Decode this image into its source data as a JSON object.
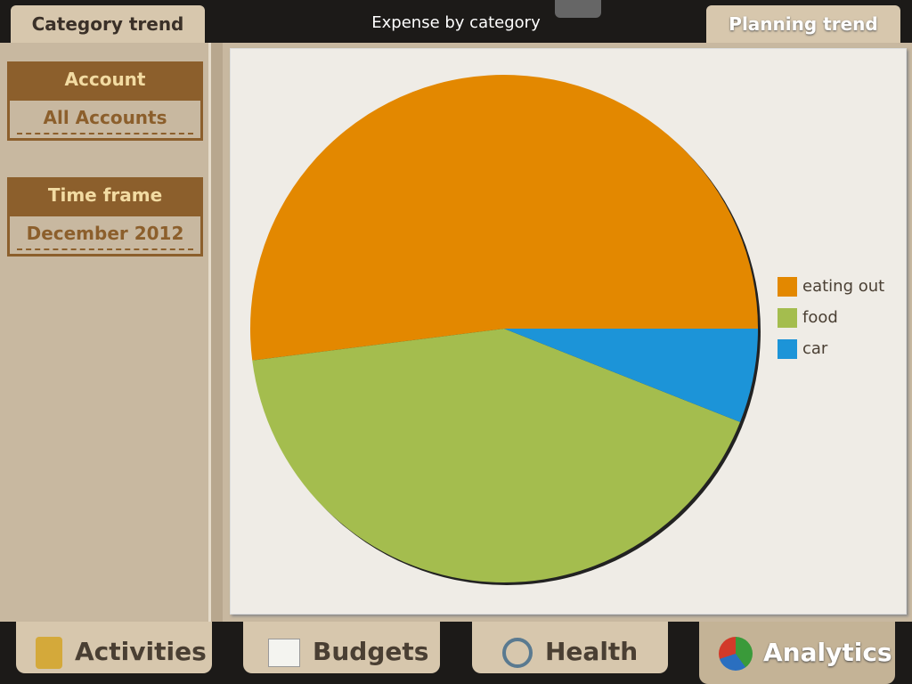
{
  "header": {
    "left_tab": "Category trend",
    "title": "Expense by category",
    "right_tab": "Planning trend"
  },
  "sidebar": {
    "account_label": "Account",
    "account_value": "All Accounts",
    "timeframe_label": "Time frame",
    "timeframe_value": "December 2012"
  },
  "bottom_tabs": [
    "Activities",
    "Budgets",
    "Health",
    "Analytics"
  ],
  "chart_data": {
    "type": "pie",
    "categories": [
      "eating out",
      "food",
      "car"
    ],
    "values": [
      52,
      42,
      6
    ],
    "colors": [
      "#e38800",
      "#a4bd4e",
      "#1c94d8"
    ],
    "legend": "right"
  }
}
